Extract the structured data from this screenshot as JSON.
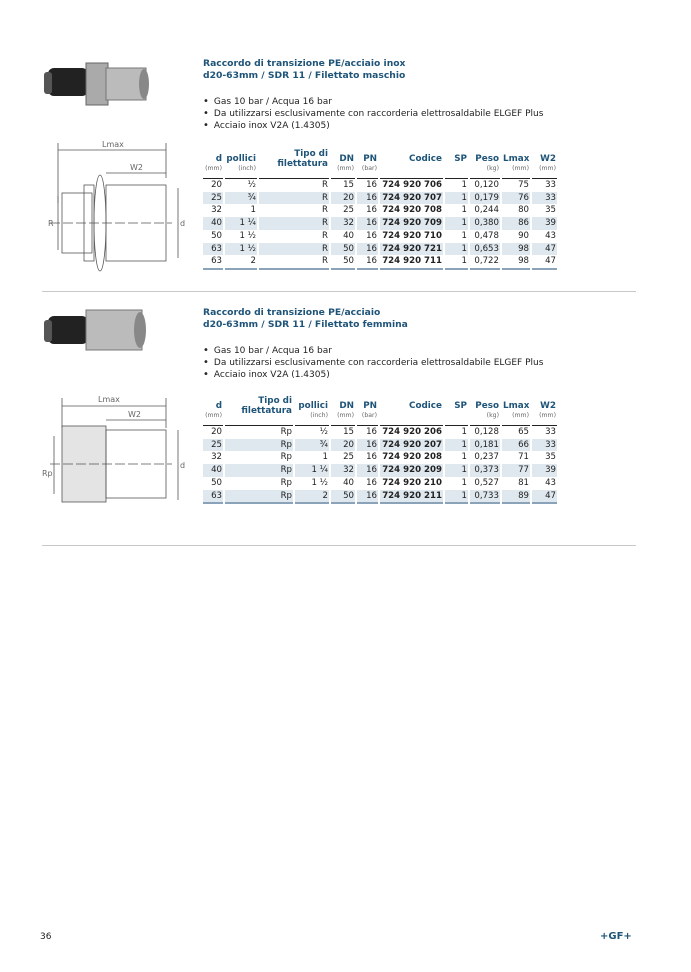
{
  "sections": [
    {
      "title_line1": "Raccordo di  transizione PE/acciaio inox",
      "title_line2": "d20-63mm / SDR 11 /  Filettato maschio",
      "bullets": [
        "Gas 10 bar / Acqua 16 bar",
        "Da utilizzarsi esclusivamente con raccorderia elettrosaldabile ELGEF Plus",
        "Acciaio inox V2A (1.4305)"
      ],
      "columns": [
        {
          "label": "d",
          "unit": "(mm)"
        },
        {
          "label": "pollici",
          "unit": "(inch)"
        },
        {
          "label": "Tipo di filettatura",
          "unit": ""
        },
        {
          "label": "DN",
          "unit": "(mm)"
        },
        {
          "label": "PN",
          "unit": "(bar)"
        },
        {
          "label": "Codice",
          "unit": ""
        },
        {
          "label": "SP",
          "unit": ""
        },
        {
          "label": "Peso",
          "unit": "(kg)"
        },
        {
          "label": "Lmax",
          "unit": "(mm)"
        },
        {
          "label": "W2",
          "unit": "(mm)"
        }
      ],
      "rows": [
        [
          "20",
          "½",
          "R",
          "15",
          "16",
          "724 920 706",
          "1",
          "0,120",
          "75",
          "33"
        ],
        [
          "25",
          "¾",
          "R",
          "20",
          "16",
          "724 920 707",
          "1",
          "0,179",
          "76",
          "33"
        ],
        [
          "32",
          "1",
          "R",
          "25",
          "16",
          "724 920 708",
          "1",
          "0,244",
          "80",
          "35"
        ],
        [
          "40",
          "1 ¼",
          "R",
          "32",
          "16",
          "724 920 709",
          "1",
          "0,380",
          "86",
          "39"
        ],
        [
          "50",
          "1 ½",
          "R",
          "40",
          "16",
          "724 920 710",
          "1",
          "0,478",
          "90",
          "43"
        ],
        [
          "63",
          "1 ½",
          "R",
          "50",
          "16",
          "724 920 721",
          "1",
          "0,653",
          "98",
          "47"
        ],
        [
          "63",
          "2",
          "R",
          "50",
          "16",
          "724 920 711",
          "1",
          "0,722",
          "98",
          "47"
        ]
      ],
      "drawing": {
        "lmax": "Lmax",
        "w2": "W2",
        "thread": "R",
        "d": "d"
      }
    },
    {
      "title_line1": "Raccordo di  transizione PE/acciaio",
      "title_line2": "d20-63mm / SDR 11 /  Filettato femmina",
      "bullets": [
        "Gas 10 bar / Acqua 16 bar",
        "Da utilizzarsi esclusivamente con raccorderia elettrosaldabile ELGEF Plus",
        "Acciaio inox V2A (1.4305)"
      ],
      "columns": [
        {
          "label": "d",
          "unit": "(mm)"
        },
        {
          "label": "Tipo di filettatura",
          "unit": ""
        },
        {
          "label": "pollici",
          "unit": "(inch)"
        },
        {
          "label": "DN",
          "unit": "(mm)"
        },
        {
          "label": "PN",
          "unit": "(bar)"
        },
        {
          "label": "Codice",
          "unit": ""
        },
        {
          "label": "SP",
          "unit": ""
        },
        {
          "label": "Peso",
          "unit": "(kg)"
        },
        {
          "label": "Lmax",
          "unit": "(mm)"
        },
        {
          "label": "W2",
          "unit": "(mm)"
        }
      ],
      "rows": [
        [
          "20",
          "Rp",
          "½",
          "15",
          "16",
          "724 920 206",
          "1",
          "0,128",
          "65",
          "33"
        ],
        [
          "25",
          "Rp",
          "¾",
          "20",
          "16",
          "724 920 207",
          "1",
          "0,181",
          "66",
          "33"
        ],
        [
          "32",
          "Rp",
          "1",
          "25",
          "16",
          "724 920 208",
          "1",
          "0,237",
          "71",
          "35"
        ],
        [
          "40",
          "Rp",
          "1 ¼",
          "32",
          "16",
          "724 920 209",
          "1",
          "0,373",
          "77",
          "39"
        ],
        [
          "50",
          "Rp",
          "1 ½",
          "40",
          "16",
          "724 920 210",
          "1",
          "0,527",
          "81",
          "43"
        ],
        [
          "63",
          "Rp",
          "2",
          "50",
          "16",
          "724 920 211",
          "1",
          "0,733",
          "89",
          "47"
        ]
      ],
      "drawing": {
        "lmax": "Lmax",
        "w2": "W2",
        "thread": "Rp",
        "d": "d"
      }
    }
  ],
  "footer": {
    "page_number": "36",
    "logo": "+GF+"
  },
  "colors": {
    "heading": "#1f5479",
    "row_shade": "#dfe8ef"
  }
}
